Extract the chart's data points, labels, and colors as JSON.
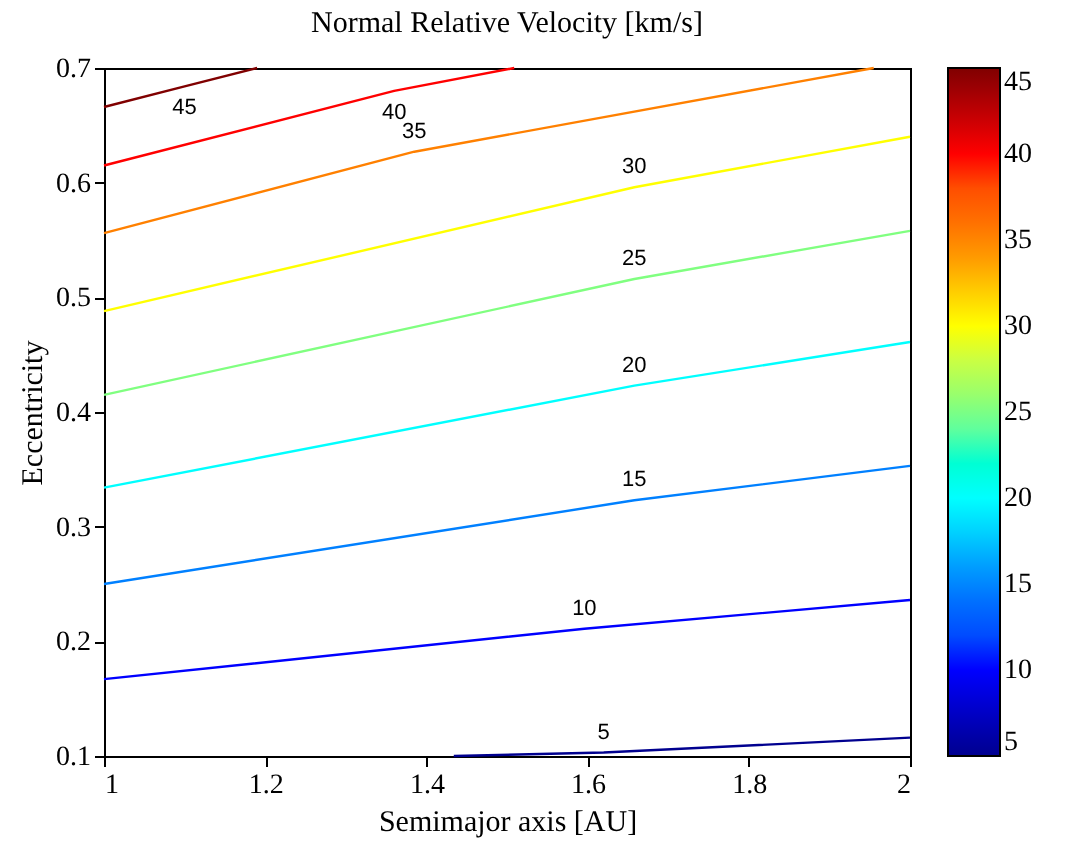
{
  "chart_data": {
    "type": "line",
    "title": "Normal Relative Velocity [km/s]",
    "xlabel": "Semimajor axis [AU]",
    "ylabel": "Eccentricity",
    "xlim": [
      1,
      2
    ],
    "xticks": [
      1,
      1.2,
      1.4,
      1.6,
      1.8,
      2
    ],
    "ylim": [
      0.1,
      0.7
    ],
    "yticks": [
      0.1,
      0.2,
      0.3,
      0.4,
      0.5,
      0.6,
      0.7
    ],
    "cticks": [
      5,
      10,
      15,
      20,
      25,
      30,
      35,
      40,
      45
    ],
    "grid": false,
    "series": [
      {
        "name": "5",
        "color": "#00008f",
        "x": [
          1.434,
          1.62,
          2
        ],
        "values": [
          0.1,
          0.103,
          0.116
        ]
      },
      {
        "name": "10",
        "color": "#0000ff",
        "x": [
          1,
          1.596,
          2
        ],
        "values": [
          0.167,
          0.211,
          0.236
        ]
      },
      {
        "name": "15",
        "color": "#0080ff",
        "x": [
          1,
          1.658,
          2
        ],
        "values": [
          0.25,
          0.323,
          0.353
        ]
      },
      {
        "name": "20",
        "color": "#00ffff",
        "x": [
          1,
          1.658,
          2
        ],
        "values": [
          0.334,
          0.423,
          0.461
        ]
      },
      {
        "name": "25",
        "color": "#80ff80",
        "x": [
          1,
          1.658,
          2
        ],
        "values": [
          0.415,
          0.516,
          0.558
        ]
      },
      {
        "name": "30",
        "color": "#ffff00",
        "x": [
          1,
          1.658,
          2
        ],
        "values": [
          0.488,
          0.596,
          0.64
        ]
      },
      {
        "name": "35",
        "color": "#ff8000",
        "x": [
          1,
          1.385,
          1.955
        ],
        "values": [
          0.556,
          0.627,
          0.7
        ]
      },
      {
        "name": "40",
        "color": "#ff0000",
        "x": [
          1,
          1.36,
          1.509
        ],
        "values": [
          0.615,
          0.68,
          0.7
        ]
      },
      {
        "name": "45",
        "color": "#800000",
        "x": [
          1,
          1.1,
          1.19
        ],
        "values": [
          0.666,
          0.684,
          0.7
        ]
      }
    ]
  }
}
